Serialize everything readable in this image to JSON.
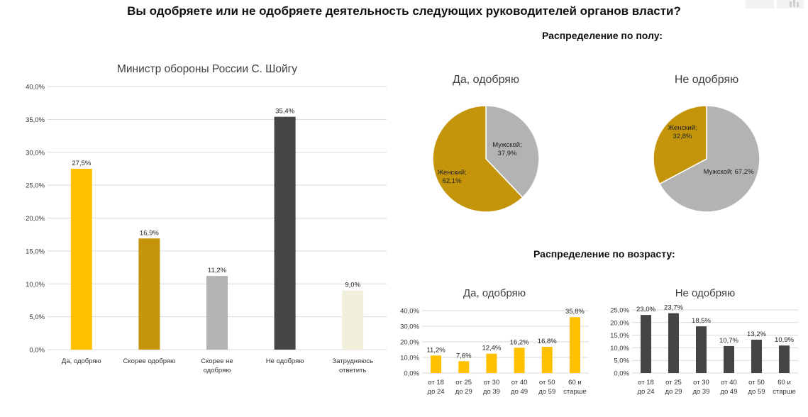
{
  "page": {
    "title": "Вы одобряете или не одобряете деятельность следующих руководителей органов власти?",
    "gender_heading": "Распределение по полу:",
    "age_heading": "Распределение по возрасту:"
  },
  "colors": {
    "yellow": "#FFC000",
    "dark_gold": "#C4950B",
    "light_gray": "#B3B3B3",
    "dark_gray": "#454545",
    "cream": "#F0F0DC",
    "grid": "#D9D9D9"
  },
  "chart_data": [
    {
      "id": "main",
      "type": "bar",
      "title": "Министр обороны России С. Шойгу",
      "categories": [
        "Да, одобряю",
        "Скорее одобряю",
        "Скорее не одобряю",
        "Не одобряю",
        "Затрудняюсь ответить"
      ],
      "category_lines": [
        [
          "Да, одобряю"
        ],
        [
          "Скорее одобряю"
        ],
        [
          "Скорее не",
          "одобряю"
        ],
        [
          "Не одобряю"
        ],
        [
          "Затрудняюсь",
          "ответить"
        ]
      ],
      "values": [
        27.5,
        16.9,
        11.2,
        35.4,
        9.0
      ],
      "value_labels": [
        "27,5%",
        "16,9%",
        "11,2%",
        "35,4%",
        "9,0%"
      ],
      "bar_colors": [
        "#FFC000",
        "#C4950B",
        "#B3B3B3",
        "#454545",
        "#F0F0DC"
      ],
      "ylim": [
        0,
        40
      ],
      "yticks": [
        0,
        5,
        10,
        15,
        20,
        25,
        30,
        35,
        40
      ],
      "ytick_labels": [
        "0,0%",
        "5,0%",
        "10,0%",
        "15,0%",
        "20,0%",
        "25,0%",
        "30,0%",
        "35,0%",
        "40,0%"
      ],
      "grid": true
    },
    {
      "id": "gender_yes",
      "type": "pie",
      "title": "Да, одобряю",
      "slices": [
        {
          "name": "Мужской",
          "value": 37.9,
          "label_lines": [
            "Мужской;",
            "37,9%"
          ],
          "color": "#B3B3B3"
        },
        {
          "name": "Женский",
          "value": 62.1,
          "label_lines": [
            "Женский;",
            "62,1%"
          ],
          "color": "#C4950B"
        }
      ]
    },
    {
      "id": "gender_no",
      "type": "pie",
      "title": "Не одобряю",
      "slices": [
        {
          "name": "Мужской",
          "value": 67.2,
          "label_lines": [
            "Мужской; 67,2%"
          ],
          "color": "#B3B3B3"
        },
        {
          "name": "Женский",
          "value": 32.8,
          "label_lines": [
            "Женский;",
            "32,8%"
          ],
          "color": "#C4950B"
        }
      ]
    },
    {
      "id": "age_yes",
      "type": "bar",
      "title": "Да, одобряю",
      "categories": [
        "от 18 до 24",
        "от 25 до 29",
        "от 30 до 39",
        "от 40 до 49",
        "от 50 до 59",
        "60 и старше"
      ],
      "category_lines": [
        [
          "от 18",
          "до 24"
        ],
        [
          "от 25",
          "до 29"
        ],
        [
          "от 30",
          "до 39"
        ],
        [
          "от 40",
          "до 49"
        ],
        [
          "от 50",
          "до 59"
        ],
        [
          "60 и",
          "старше"
        ]
      ],
      "values": [
        11.2,
        7.6,
        12.4,
        16.2,
        16.8,
        35.8
      ],
      "value_labels": [
        "11,2%",
        "7,6%",
        "12,4%",
        "16,2%",
        "16,8%",
        "35,8%"
      ],
      "bar_color": "#FFC000",
      "ylim": [
        0,
        40
      ],
      "yticks": [
        0,
        10,
        20,
        30,
        40
      ],
      "ytick_labels": [
        "0,0%",
        "10,0%",
        "20,0%",
        "30,0%",
        "40,0%"
      ],
      "grid": true
    },
    {
      "id": "age_no",
      "type": "bar",
      "title": "Не одобряю",
      "categories": [
        "от 18 до 24",
        "от 25 до 29",
        "от 30 до 39",
        "от 40 до 49",
        "от 50 до 59",
        "60 и старше"
      ],
      "category_lines": [
        [
          "от 18",
          "до 24"
        ],
        [
          "от 25",
          "до 29"
        ],
        [
          "от 30",
          "до 39"
        ],
        [
          "от 40",
          "до 49"
        ],
        [
          "от 50",
          "до 59"
        ],
        [
          "60 и",
          "старше"
        ]
      ],
      "values": [
        23.0,
        23.7,
        18.5,
        10.7,
        13.2,
        10.9
      ],
      "value_labels": [
        "23,0%",
        "23,7%",
        "18,5%",
        "10,7%",
        "13,2%",
        "10,9%"
      ],
      "bar_color": "#454545",
      "ylim": [
        0,
        25
      ],
      "yticks": [
        0,
        5,
        10,
        15,
        20,
        25
      ],
      "ytick_labels": [
        "0,0%",
        "5,0%",
        "10,0%",
        "15,0%",
        "20,0%",
        "25,0%"
      ],
      "grid": true
    }
  ]
}
